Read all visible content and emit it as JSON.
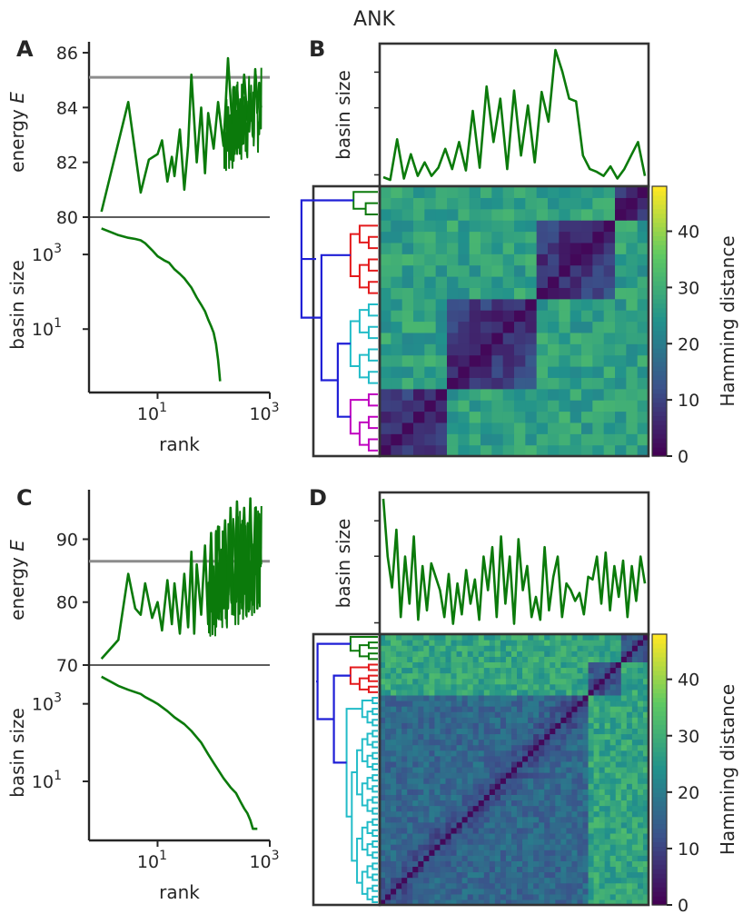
{
  "figure": {
    "title": "ANK",
    "colormap": [
      "#440154",
      "#3b528b",
      "#21918c",
      "#5ec962",
      "#fde725"
    ],
    "colors": {
      "line": "#0b7a0b",
      "threshold": "#8c8c8c",
      "axis": "#262626",
      "frame": "#333333",
      "clusters": {
        "magenta": "#c000c0",
        "cyan": "#22bcc8",
        "red": "#e41a1c",
        "green": "#0b7a0b",
        "blue": "#1f1fd6"
      }
    }
  },
  "chart_data": [
    {
      "id": "A",
      "panel_label": "A",
      "type": "line",
      "title": "",
      "xlabel": "",
      "ylabel": "energy E",
      "ylabel_main": "energy ",
      "ylabel_italic": "E",
      "xscale": "log",
      "xlim": [
        0.6,
        1000
      ],
      "ylim": [
        80,
        86.2
      ],
      "yticks": [
        80,
        82,
        84,
        86
      ],
      "ytick_labels": [
        "80",
        "82",
        "84",
        "86"
      ],
      "threshold": 85.1,
      "x": [
        1,
        3,
        5,
        7,
        10,
        12,
        15,
        18,
        20,
        25,
        30,
        35,
        40,
        50,
        60,
        70,
        80,
        100,
        120,
        150,
        180,
        220,
        260,
        300,
        350,
        400,
        450,
        500,
        550,
        600,
        650,
        700
      ],
      "y": [
        80.2,
        84.2,
        80.9,
        82.1,
        82.3,
        82.8,
        81.3,
        82.2,
        81.5,
        83.2,
        81.0,
        82.6,
        85.2,
        82.0,
        84.0,
        81.6,
        83.8,
        82.5,
        84.2,
        82.6,
        85.8,
        83.0,
        84.8,
        82.9,
        85.2,
        83.5,
        84.5,
        83.1,
        85.4,
        83.8,
        84.9,
        84.0
      ]
    },
    {
      "id": "A2",
      "type": "line",
      "title": "",
      "xlabel": "rank",
      "ylabel": "basin size",
      "xscale": "log",
      "yscale": "log",
      "xlim": [
        0.6,
        1000
      ],
      "ylim": [
        0.2,
        10000
      ],
      "xticks": [
        10,
        1000
      ],
      "xtick_base": [
        "10",
        "10"
      ],
      "xtick_exp": [
        "1",
        "3"
      ],
      "yticks": [
        10,
        1000
      ],
      "ytick_base": [
        "10",
        "10"
      ],
      "ytick_exp": [
        "1",
        "3"
      ],
      "x": [
        1,
        2,
        3,
        4,
        5,
        6,
        8,
        10,
        13,
        16,
        20,
        25,
        30,
        40,
        50,
        60,
        70,
        80,
        90,
        100,
        110,
        120,
        125,
        130
      ],
      "y": [
        5000,
        3300,
        2800,
        2600,
        2400,
        2000,
        1300,
        900,
        700,
        600,
        400,
        300,
        230,
        130,
        70,
        45,
        30,
        18,
        12,
        8,
        4,
        1.5,
        0.8,
        0.4
      ]
    },
    {
      "id": "B",
      "panel_label": "B",
      "type": "line",
      "title": "",
      "ylabel": "basin size",
      "yscale": "log",
      "xlim": [
        0,
        29
      ],
      "ylim": [
        0,
        1
      ],
      "values": [
        0.04,
        0.02,
        0.32,
        0.03,
        0.21,
        0.05,
        0.15,
        0.05,
        0.11,
        0.25,
        0.1,
        0.3,
        0.09,
        0.53,
        0.11,
        0.71,
        0.3,
        0.62,
        0.1,
        0.68,
        0.2,
        0.57,
        0.15,
        0.67,
        0.45,
        0.98,
        0.82,
        0.62,
        0.6,
        0.2,
        0.1,
        0.08,
        0.05,
        0.12,
        0.03,
        0.1,
        0.2,
        0.3,
        0.05
      ]
    },
    {
      "id": "B2",
      "type": "heatmap",
      "ylabel": "Hamming distance",
      "cbar_ticks": [
        0,
        10,
        20,
        30,
        40
      ],
      "vmin": 0,
      "vmax": 48,
      "blocks": [
        6,
        8,
        7,
        3
      ],
      "block_colors": [
        "magenta",
        "cyan",
        "red",
        "green"
      ],
      "dist_within": 11,
      "dist_between": 27
    },
    {
      "id": "C",
      "panel_label": "C",
      "type": "line",
      "title": "",
      "xlabel": "",
      "ylabel": "energy E",
      "ylabel_main": "energy ",
      "ylabel_italic": "E",
      "xscale": "log",
      "xlim": [
        0.6,
        1000
      ],
      "ylim": [
        70,
        97
      ],
      "yticks": [
        70,
        80,
        90
      ],
      "ytick_labels": [
        "70",
        "80",
        "90"
      ],
      "threshold": 86.5,
      "x": [
        1,
        2,
        3,
        4,
        5,
        6,
        8,
        10,
        12,
        15,
        18,
        20,
        25,
        30,
        35,
        40,
        45,
        50,
        60,
        70,
        80,
        90,
        100,
        120,
        140,
        160,
        180,
        200,
        230,
        260,
        300,
        350,
        400,
        450,
        500,
        550,
        600,
        650,
        700
      ],
      "y": [
        71,
        74,
        84.5,
        79,
        78,
        83,
        77.5,
        80,
        75.5,
        83.5,
        76.5,
        83,
        75,
        84.5,
        76,
        88,
        75,
        86,
        78,
        89,
        76.5,
        91,
        78,
        92,
        80,
        93,
        79,
        95,
        78,
        96,
        80,
        95,
        79,
        96.5,
        81,
        95,
        79,
        94,
        86
      ]
    },
    {
      "id": "C2",
      "type": "line",
      "title": "",
      "xlabel": "rank",
      "ylabel": "basin size",
      "xscale": "log",
      "yscale": "log",
      "xlim": [
        0.6,
        1000
      ],
      "ylim": [
        0.3,
        10000
      ],
      "xticks": [
        10,
        1000
      ],
      "xtick_base": [
        "10",
        "10"
      ],
      "xtick_exp": [
        "1",
        "3"
      ],
      "yticks": [
        10,
        1000
      ],
      "ytick_base": [
        "10",
        "10"
      ],
      "ytick_exp": [
        "1",
        "3"
      ],
      "x": [
        1,
        2,
        3,
        5,
        6,
        8,
        10,
        15,
        20,
        30,
        40,
        60,
        80,
        100,
        150,
        200,
        250,
        300,
        350,
        400,
        450,
        500,
        600
      ],
      "y": [
        5000,
        2900,
        2300,
        1800,
        1500,
        1200,
        1000,
        650,
        450,
        300,
        200,
        100,
        50,
        30,
        12,
        7,
        5,
        3,
        2,
        1.5,
        1,
        0.6,
        0.6
      ]
    },
    {
      "id": "D",
      "panel_label": "D",
      "type": "line",
      "title": "",
      "ylabel": "basin size",
      "yscale": "log",
      "xlim": [
        0,
        59
      ],
      "ylim": [
        0,
        1
      ],
      "values": [
        0.98,
        0.55,
        0.32,
        0.75,
        0.1,
        0.55,
        0.2,
        0.7,
        0.08,
        0.48,
        0.15,
        0.5,
        0.4,
        0.3,
        0.1,
        0.42,
        0.05,
        0.35,
        0.12,
        0.45,
        0.2,
        0.38,
        0.08,
        0.55,
        0.3,
        0.62,
        0.1,
        0.7,
        0.2,
        0.55,
        0.05,
        0.68,
        0.3,
        0.48,
        0.1,
        0.25,
        0.08,
        0.62,
        0.15,
        0.4,
        0.55,
        0.1,
        0.35,
        0.3,
        0.22,
        0.28,
        0.12,
        0.4,
        0.38,
        0.55,
        0.2,
        0.58,
        0.15,
        0.48,
        0.25,
        0.52,
        0.1,
        0.48,
        0.22,
        0.55,
        0.35
      ]
    },
    {
      "id": "D2",
      "type": "heatmap",
      "ylabel": "Hamming distance",
      "cbar_ticks": [
        0,
        10,
        20,
        30,
        40
      ],
      "vmin": 0,
      "vmax": 48,
      "blocks": [
        38,
        6,
        5
      ],
      "block_colors": [
        "cyan",
        "red",
        "green"
      ],
      "dist_within": 16,
      "dist_between": 28
    }
  ]
}
